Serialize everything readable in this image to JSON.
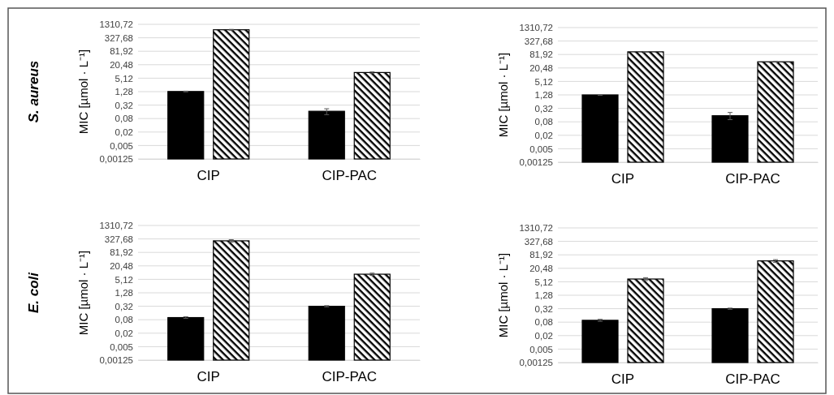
{
  "chart_data": [
    {
      "type": "bar",
      "annotations": [
        "S. aureus"
      ],
      "ylabel": "MIC [µmol · L⁻¹]",
      "categories": [
        "CIP",
        "CIP-PAC"
      ],
      "log": true,
      "grid": "y",
      "legend": false,
      "ylim": [
        0.00125,
        1310.72
      ],
      "yticks": [
        {
          "value": 0.00125,
          "label": "0,00125"
        },
        {
          "value": 0.005,
          "label": "0,005"
        },
        {
          "value": 0.02,
          "label": "0,02"
        },
        {
          "value": 0.08,
          "label": "0,08"
        },
        {
          "value": 0.32,
          "label": "0,32"
        },
        {
          "value": 1.28,
          "label": "1,28"
        },
        {
          "value": 5.12,
          "label": "5,12"
        },
        {
          "value": 20.48,
          "label": "20,48"
        },
        {
          "value": 81.92,
          "label": "81,92"
        },
        {
          "value": 327.68,
          "label": "327,68"
        },
        {
          "value": 1310.72,
          "label": "1310,72"
        }
      ],
      "series": [
        {
          "color": "#000000",
          "values": [
            1.3,
            0.17
          ],
          "errors": [
            0.05,
            [
              0.12,
              0.22
            ]
          ]
        },
        {
          "color": "#000000",
          "values": [
            750,
            9.2
          ],
          "errors": [
            30,
            0.6
          ]
        }
      ]
    },
    {
      "type": "bar",
      "ylabel": "MIC [µmol · L⁻¹]",
      "categories": [
        "CIP",
        "CIP-PAC"
      ],
      "log": true,
      "grid": "y",
      "legend": false,
      "ylim": [
        0.00125,
        1310.72
      ],
      "yticks": [
        {
          "value": 0.00125,
          "label": "0,00125"
        },
        {
          "value": 0.005,
          "label": "0,005"
        },
        {
          "value": 0.02,
          "label": "0,02"
        },
        {
          "value": 0.08,
          "label": "0,08"
        },
        {
          "value": 0.32,
          "label": "0,32"
        },
        {
          "value": 1.28,
          "label": "1,28"
        },
        {
          "value": 5.12,
          "label": "5,12"
        },
        {
          "value": 20.48,
          "label": "20,48"
        },
        {
          "value": 81.92,
          "label": "81,92"
        },
        {
          "value": 327.68,
          "label": "327,68"
        },
        {
          "value": 1310.72,
          "label": "1310,72"
        }
      ],
      "series": [
        {
          "color": "#000000",
          "values": [
            1.28,
            0.15
          ],
          "errors": [
            0.05,
            [
              0.1,
              0.21
            ]
          ]
        },
        {
          "color": "#000000",
          "values": [
            108,
            38.7
          ],
          "errors": [
            3,
            1.2
          ]
        }
      ]
    },
    {
      "type": "bar",
      "annotations": [
        "E. coli"
      ],
      "ylabel": "MIC [µmol · L⁻¹]",
      "categories": [
        "CIP",
        "CIP-PAC"
      ],
      "log": true,
      "grid": "y",
      "legend": false,
      "ylim": [
        0.00125,
        1310.72
      ],
      "yticks": [
        {
          "value": 0.00125,
          "label": "0,00125"
        },
        {
          "value": 0.005,
          "label": "0,005"
        },
        {
          "value": 0.02,
          "label": "0,02"
        },
        {
          "value": 0.08,
          "label": "0,08"
        },
        {
          "value": 0.32,
          "label": "0,32"
        },
        {
          "value": 1.28,
          "label": "1,28"
        },
        {
          "value": 5.12,
          "label": "5,12"
        },
        {
          "value": 20.48,
          "label": "20,48"
        },
        {
          "value": 81.92,
          "label": "81,92"
        },
        {
          "value": 327.68,
          "label": "327,68"
        },
        {
          "value": 1310.72,
          "label": "1310,72"
        }
      ],
      "series": [
        {
          "color": "#000000",
          "values": [
            0.1,
            0.32
          ],
          "errors": [
            0.008,
            0.02
          ]
        },
        {
          "color": "#000000",
          "values": [
            270,
            8.7
          ],
          "errors": [
            35,
            1
          ]
        }
      ]
    },
    {
      "type": "bar",
      "ylabel": "MIC [µmol · L⁻¹]",
      "categories": [
        "CIP",
        "CIP-PAC"
      ],
      "log": true,
      "grid": "y",
      "legend": false,
      "ylim": [
        0.00125,
        1310.72
      ],
      "yticks": [
        {
          "value": 0.00125,
          "label": "0,00125"
        },
        {
          "value": 0.005,
          "label": "0,005"
        },
        {
          "value": 0.02,
          "label": "0,02"
        },
        {
          "value": 0.08,
          "label": "0,08"
        },
        {
          "value": 0.32,
          "label": "0,32"
        },
        {
          "value": 1.28,
          "label": "1,28"
        },
        {
          "value": 5.12,
          "label": "5,12"
        },
        {
          "value": 20.48,
          "label": "20,48"
        },
        {
          "value": 81.92,
          "label": "81,92"
        },
        {
          "value": 327.68,
          "label": "327,68"
        },
        {
          "value": 1310.72,
          "label": "1310,72"
        }
      ],
      "series": [
        {
          "color": "#000000",
          "values": [
            0.097,
            0.32
          ],
          "errors": [
            0.01,
            0.02
          ]
        },
        {
          "color": "#000000",
          "values": [
            6.8,
            44
          ],
          "errors": [
            1,
            6
          ]
        }
      ]
    }
  ]
}
